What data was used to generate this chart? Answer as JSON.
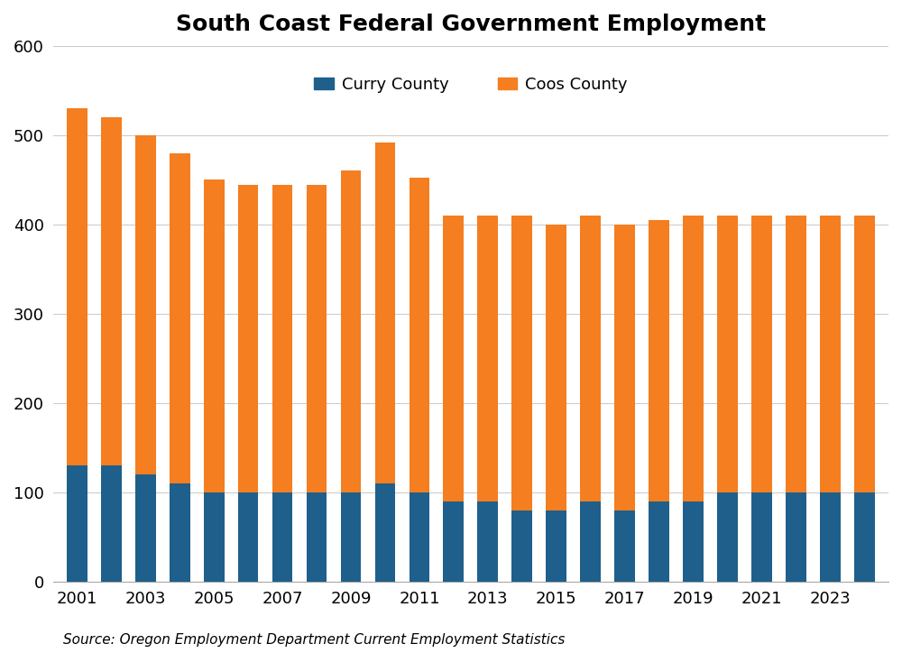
{
  "title": "South Coast Federal Government Employment",
  "source": "Source: Oregon Employment Department Current Employment Statistics",
  "years": [
    2001,
    2002,
    2003,
    2004,
    2005,
    2006,
    2007,
    2008,
    2009,
    2010,
    2011,
    2012,
    2013,
    2014,
    2015,
    2016,
    2017,
    2018,
    2019,
    2020,
    2021,
    2022,
    2023,
    2024
  ],
  "curry_county": [
    130,
    130,
    120,
    110,
    100,
    100,
    100,
    100,
    100,
    110,
    100,
    90,
    90,
    80,
    80,
    90,
    80,
    90,
    90,
    100,
    100,
    100,
    100,
    100
  ],
  "coos_county": [
    400,
    390,
    380,
    370,
    350,
    344,
    344,
    344,
    360,
    382,
    352,
    320,
    320,
    330,
    320,
    320,
    320,
    315,
    320,
    310,
    310,
    310,
    310,
    310
  ],
  "curry_color": "#1f5f8b",
  "coos_color": "#f47e20",
  "background_color": "#ffffff",
  "grid_color": "#cccccc",
  "ylim": [
    0,
    600
  ],
  "yticks": [
    0,
    100,
    200,
    300,
    400,
    500,
    600
  ],
  "xtick_years": [
    2001,
    2003,
    2005,
    2007,
    2009,
    2011,
    2013,
    2015,
    2017,
    2019,
    2021,
    2023
  ],
  "title_fontsize": 18,
  "tick_fontsize": 13,
  "legend_fontsize": 13,
  "source_fontsize": 11
}
